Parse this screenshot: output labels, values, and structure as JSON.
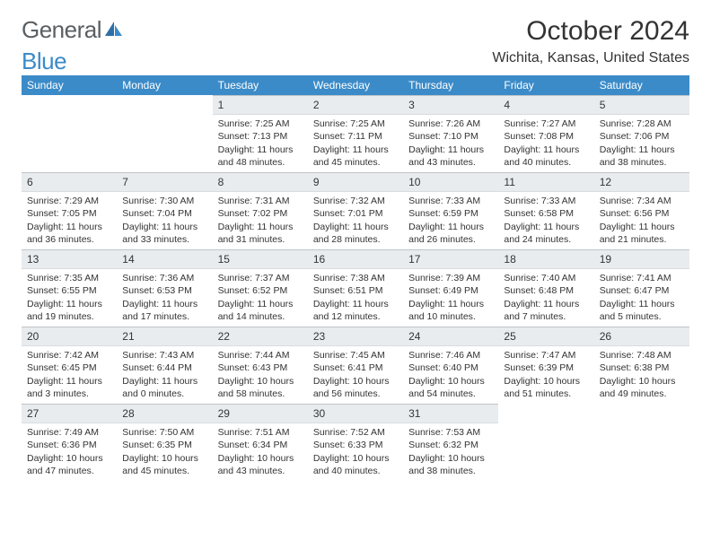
{
  "logo": {
    "part1": "General",
    "part2": "Blue"
  },
  "title": "October 2024",
  "location": "Wichita, Kansas, United States",
  "header_bg": "#3b8bc8",
  "header_fg": "#ffffff",
  "daynum_bg": "#e9ecef",
  "columns": [
    "Sunday",
    "Monday",
    "Tuesday",
    "Wednesday",
    "Thursday",
    "Friday",
    "Saturday"
  ],
  "weeks": [
    [
      {
        "n": ""
      },
      {
        "n": ""
      },
      {
        "n": "1",
        "sr": "Sunrise: 7:25 AM",
        "ss": "Sunset: 7:13 PM",
        "dl": "Daylight: 11 hours and 48 minutes."
      },
      {
        "n": "2",
        "sr": "Sunrise: 7:25 AM",
        "ss": "Sunset: 7:11 PM",
        "dl": "Daylight: 11 hours and 45 minutes."
      },
      {
        "n": "3",
        "sr": "Sunrise: 7:26 AM",
        "ss": "Sunset: 7:10 PM",
        "dl": "Daylight: 11 hours and 43 minutes."
      },
      {
        "n": "4",
        "sr": "Sunrise: 7:27 AM",
        "ss": "Sunset: 7:08 PM",
        "dl": "Daylight: 11 hours and 40 minutes."
      },
      {
        "n": "5",
        "sr": "Sunrise: 7:28 AM",
        "ss": "Sunset: 7:06 PM",
        "dl": "Daylight: 11 hours and 38 minutes."
      }
    ],
    [
      {
        "n": "6",
        "sr": "Sunrise: 7:29 AM",
        "ss": "Sunset: 7:05 PM",
        "dl": "Daylight: 11 hours and 36 minutes."
      },
      {
        "n": "7",
        "sr": "Sunrise: 7:30 AM",
        "ss": "Sunset: 7:04 PM",
        "dl": "Daylight: 11 hours and 33 minutes."
      },
      {
        "n": "8",
        "sr": "Sunrise: 7:31 AM",
        "ss": "Sunset: 7:02 PM",
        "dl": "Daylight: 11 hours and 31 minutes."
      },
      {
        "n": "9",
        "sr": "Sunrise: 7:32 AM",
        "ss": "Sunset: 7:01 PM",
        "dl": "Daylight: 11 hours and 28 minutes."
      },
      {
        "n": "10",
        "sr": "Sunrise: 7:33 AM",
        "ss": "Sunset: 6:59 PM",
        "dl": "Daylight: 11 hours and 26 minutes."
      },
      {
        "n": "11",
        "sr": "Sunrise: 7:33 AM",
        "ss": "Sunset: 6:58 PM",
        "dl": "Daylight: 11 hours and 24 minutes."
      },
      {
        "n": "12",
        "sr": "Sunrise: 7:34 AM",
        "ss": "Sunset: 6:56 PM",
        "dl": "Daylight: 11 hours and 21 minutes."
      }
    ],
    [
      {
        "n": "13",
        "sr": "Sunrise: 7:35 AM",
        "ss": "Sunset: 6:55 PM",
        "dl": "Daylight: 11 hours and 19 minutes."
      },
      {
        "n": "14",
        "sr": "Sunrise: 7:36 AM",
        "ss": "Sunset: 6:53 PM",
        "dl": "Daylight: 11 hours and 17 minutes."
      },
      {
        "n": "15",
        "sr": "Sunrise: 7:37 AM",
        "ss": "Sunset: 6:52 PM",
        "dl": "Daylight: 11 hours and 14 minutes."
      },
      {
        "n": "16",
        "sr": "Sunrise: 7:38 AM",
        "ss": "Sunset: 6:51 PM",
        "dl": "Daylight: 11 hours and 12 minutes."
      },
      {
        "n": "17",
        "sr": "Sunrise: 7:39 AM",
        "ss": "Sunset: 6:49 PM",
        "dl": "Daylight: 11 hours and 10 minutes."
      },
      {
        "n": "18",
        "sr": "Sunrise: 7:40 AM",
        "ss": "Sunset: 6:48 PM",
        "dl": "Daylight: 11 hours and 7 minutes."
      },
      {
        "n": "19",
        "sr": "Sunrise: 7:41 AM",
        "ss": "Sunset: 6:47 PM",
        "dl": "Daylight: 11 hours and 5 minutes."
      }
    ],
    [
      {
        "n": "20",
        "sr": "Sunrise: 7:42 AM",
        "ss": "Sunset: 6:45 PM",
        "dl": "Daylight: 11 hours and 3 minutes."
      },
      {
        "n": "21",
        "sr": "Sunrise: 7:43 AM",
        "ss": "Sunset: 6:44 PM",
        "dl": "Daylight: 11 hours and 0 minutes."
      },
      {
        "n": "22",
        "sr": "Sunrise: 7:44 AM",
        "ss": "Sunset: 6:43 PM",
        "dl": "Daylight: 10 hours and 58 minutes."
      },
      {
        "n": "23",
        "sr": "Sunrise: 7:45 AM",
        "ss": "Sunset: 6:41 PM",
        "dl": "Daylight: 10 hours and 56 minutes."
      },
      {
        "n": "24",
        "sr": "Sunrise: 7:46 AM",
        "ss": "Sunset: 6:40 PM",
        "dl": "Daylight: 10 hours and 54 minutes."
      },
      {
        "n": "25",
        "sr": "Sunrise: 7:47 AM",
        "ss": "Sunset: 6:39 PM",
        "dl": "Daylight: 10 hours and 51 minutes."
      },
      {
        "n": "26",
        "sr": "Sunrise: 7:48 AM",
        "ss": "Sunset: 6:38 PM",
        "dl": "Daylight: 10 hours and 49 minutes."
      }
    ],
    [
      {
        "n": "27",
        "sr": "Sunrise: 7:49 AM",
        "ss": "Sunset: 6:36 PM",
        "dl": "Daylight: 10 hours and 47 minutes."
      },
      {
        "n": "28",
        "sr": "Sunrise: 7:50 AM",
        "ss": "Sunset: 6:35 PM",
        "dl": "Daylight: 10 hours and 45 minutes."
      },
      {
        "n": "29",
        "sr": "Sunrise: 7:51 AM",
        "ss": "Sunset: 6:34 PM",
        "dl": "Daylight: 10 hours and 43 minutes."
      },
      {
        "n": "30",
        "sr": "Sunrise: 7:52 AM",
        "ss": "Sunset: 6:33 PM",
        "dl": "Daylight: 10 hours and 40 minutes."
      },
      {
        "n": "31",
        "sr": "Sunrise: 7:53 AM",
        "ss": "Sunset: 6:32 PM",
        "dl": "Daylight: 10 hours and 38 minutes."
      },
      {
        "n": ""
      },
      {
        "n": ""
      }
    ]
  ]
}
